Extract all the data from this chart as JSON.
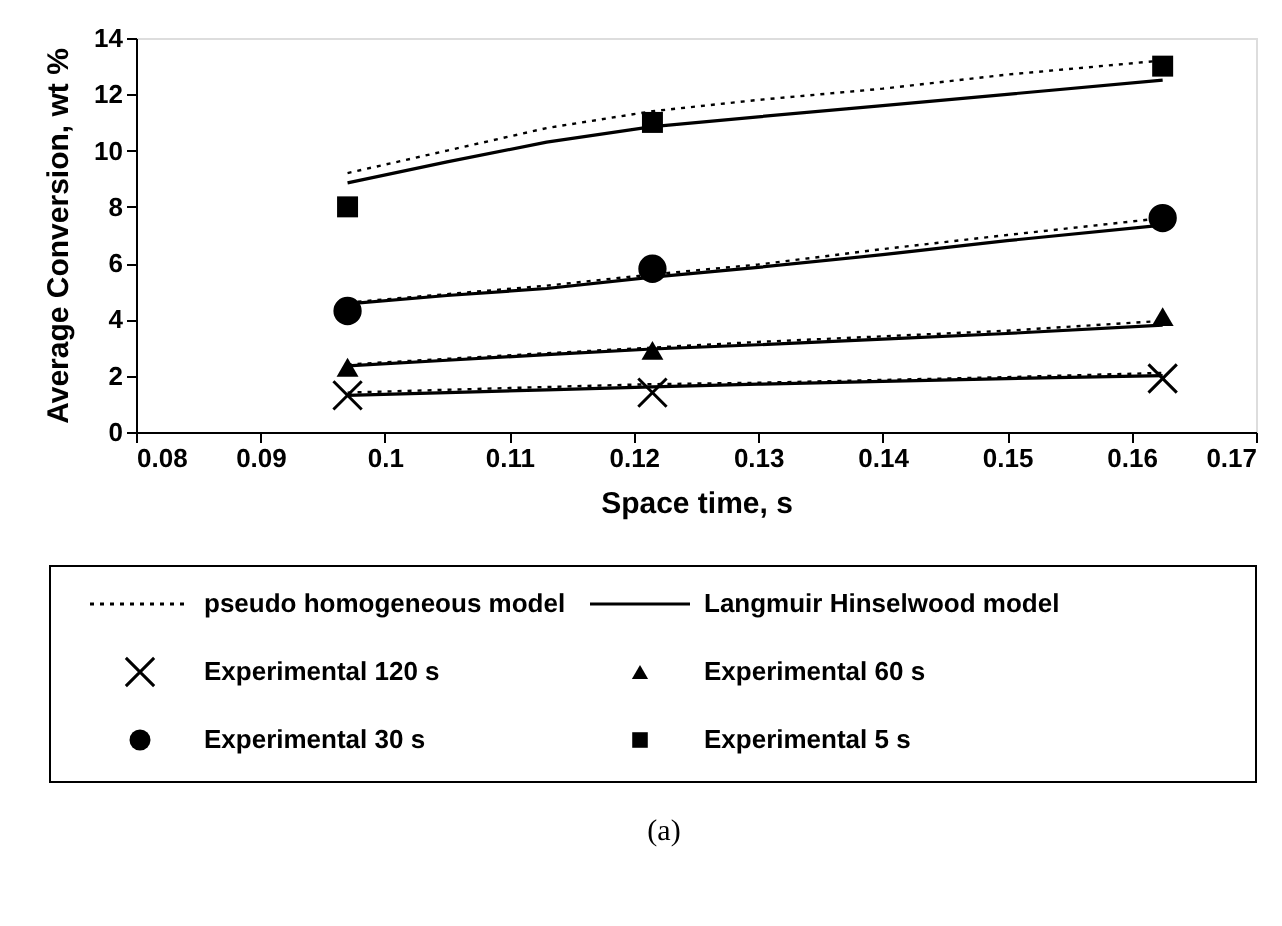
{
  "chart_data": {
    "type": "line",
    "xlabel": "Space time, s",
    "ylabel": "Average Conversion, wt %",
    "xlim": [
      0.08,
      0.17
    ],
    "xticks": [
      0.08,
      0.09,
      0.1,
      0.11,
      0.12,
      0.13,
      0.14,
      0.15,
      0.16,
      0.17
    ],
    "ylim": [
      0,
      14
    ],
    "yticks": [
      0,
      2,
      4,
      6,
      8,
      10,
      12,
      14
    ],
    "grid": false,
    "legend": "bottom",
    "annotations": [
      "(a)"
    ],
    "series": [
      {
        "name": "pseudo homogeneous model",
        "type": "line",
        "line_style": "dotted",
        "color": "#000000",
        "x": [
          0.097,
          0.105,
          0.113,
          0.1215,
          0.13,
          0.14,
          0.15,
          0.1625
        ],
        "values": [
          1.4,
          1.5,
          1.6,
          1.7,
          1.75,
          1.85,
          1.95,
          2.1
        ]
      },
      {
        "type": "line",
        "line_style": "dotted",
        "color": "#000000",
        "x": [
          0.097,
          0.105,
          0.113,
          0.1215,
          0.13,
          0.14,
          0.15,
          0.1625
        ],
        "values": [
          2.4,
          2.6,
          2.8,
          3.0,
          3.2,
          3.4,
          3.6,
          3.95
        ]
      },
      {
        "type": "line",
        "line_style": "dotted",
        "color": "#000000",
        "x": [
          0.097,
          0.105,
          0.113,
          0.1215,
          0.13,
          0.14,
          0.15,
          0.1625
        ],
        "values": [
          4.6,
          4.9,
          5.2,
          5.6,
          5.95,
          6.5,
          7.0,
          7.6
        ]
      },
      {
        "type": "line",
        "line_style": "dotted",
        "color": "#000000",
        "x": [
          0.097,
          0.105,
          0.113,
          0.1215,
          0.13,
          0.14,
          0.15,
          0.1625
        ],
        "values": [
          9.2,
          10.0,
          10.8,
          11.4,
          11.8,
          12.2,
          12.7,
          13.2
        ]
      },
      {
        "name": "Langmuir Hinselwood model",
        "type": "line",
        "line_style": "solid",
        "color": "#000000",
        "x": [
          0.097,
          0.105,
          0.113,
          0.1215,
          0.13,
          0.14,
          0.15,
          0.1625
        ],
        "values": [
          1.3,
          1.4,
          1.5,
          1.6,
          1.7,
          1.8,
          1.9,
          2.0
        ]
      },
      {
        "type": "line",
        "line_style": "solid",
        "color": "#000000",
        "x": [
          0.097,
          0.105,
          0.113,
          0.1215,
          0.13,
          0.14,
          0.15,
          0.1625
        ],
        "values": [
          2.35,
          2.55,
          2.75,
          2.95,
          3.1,
          3.3,
          3.5,
          3.8
        ]
      },
      {
        "type": "line",
        "line_style": "solid",
        "color": "#000000",
        "x": [
          0.097,
          0.105,
          0.113,
          0.1215,
          0.13,
          0.14,
          0.15,
          0.1625
        ],
        "values": [
          4.55,
          4.85,
          5.1,
          5.5,
          5.85,
          6.3,
          6.8,
          7.35
        ]
      },
      {
        "type": "line",
        "line_style": "solid",
        "color": "#000000",
        "x": [
          0.097,
          0.105,
          0.113,
          0.1215,
          0.13,
          0.14,
          0.15,
          0.1625
        ],
        "values": [
          8.85,
          9.6,
          10.3,
          10.85,
          11.2,
          11.6,
          12.0,
          12.5
        ]
      },
      {
        "name": "Experimental 120 s",
        "type": "scatter",
        "marker": "cross",
        "color": "#000000",
        "x": [
          0.097,
          0.1215,
          0.1625
        ],
        "values": [
          1.3,
          1.4,
          1.9
        ]
      },
      {
        "name": "Experimental 60 s",
        "type": "scatter",
        "marker": "triangle",
        "color": "#000000",
        "x": [
          0.097,
          0.1215,
          0.1625
        ],
        "values": [
          2.3,
          2.9,
          4.1
        ]
      },
      {
        "name": "Experimental 30 s",
        "type": "scatter",
        "marker": "circle",
        "color": "#000000",
        "x": [
          0.097,
          0.1215,
          0.1625
        ],
        "values": [
          4.3,
          5.8,
          7.6
        ]
      },
      {
        "name": "Experimental 5 s",
        "type": "scatter",
        "marker": "square",
        "color": "#000000",
        "x": [
          0.097,
          0.1215,
          0.1625
        ],
        "values": [
          8,
          11,
          13
        ]
      }
    ]
  }
}
